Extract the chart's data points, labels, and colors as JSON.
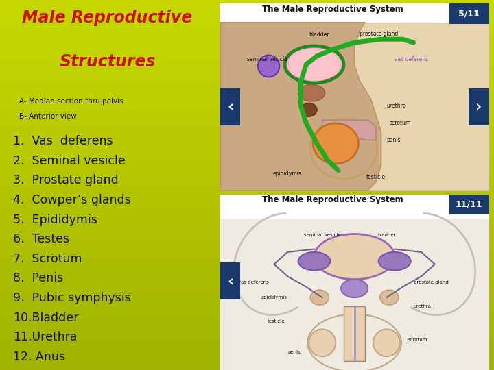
{
  "bg_color": "#8ab800",
  "bg_gradient_top": "#c8d800",
  "bg_gradient_bottom": "#6a9000",
  "title_line1": "Male Reproductive",
  "title_line2": "Structures",
  "title_color": "#cc1100",
  "title_fontsize": 17,
  "subtitle_lines": [
    "A- Median section thru pelvis",
    "B- Anterior view"
  ],
  "subtitle_color": "#111111",
  "subtitle_fontsize": 7.5,
  "items": [
    "1.  Vas  deferens",
    "2.  Seminal vesicle",
    "3.  Prostate gland",
    "4.  Cowper’s glands",
    "5.  Epididymis",
    "6.  Testes",
    "7.  Scrotum",
    "8.  Penis",
    "9.  Pubic symphysis",
    "10.Bladder",
    "11.Urethra",
    "12. Anus"
  ],
  "items_color": "#111111",
  "items_fontsize": 12.5,
  "panel1_badge": "5/11",
  "panel2_badge": "11/11",
  "badge_bg": "#1a3a6e",
  "badge_color": "#ffffff",
  "nav_bg": "#1a3a6e",
  "nav_color": "#ffffff",
  "panel_border": "#bbbbbb",
  "panel1_bg": "#e8d5b0",
  "panel2_bg": "#f0ebe0",
  "panel_title_color": "#111111",
  "panel_title_fontsize": 8.5
}
